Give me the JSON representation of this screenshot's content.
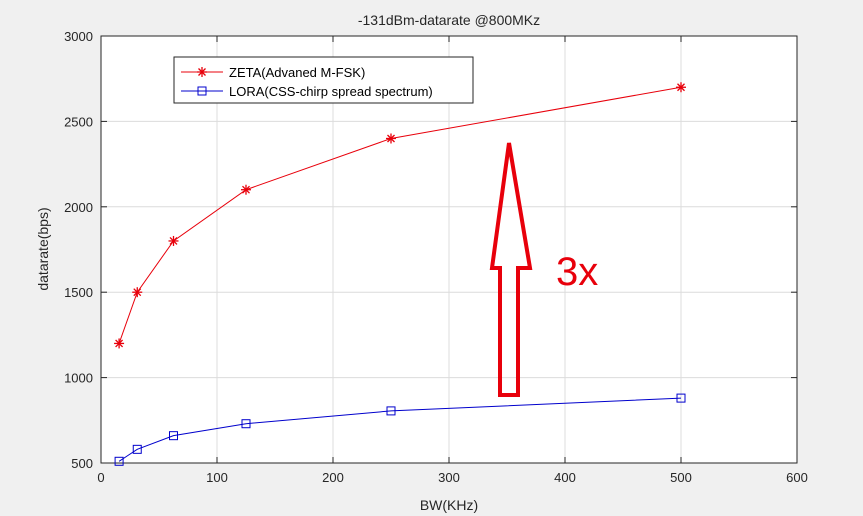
{
  "chart_data": {
    "type": "line",
    "title": "-131dBm-datarate @800MKz",
    "xlabel": "BW(KHz)",
    "ylabel": "datarate(bps)",
    "xlim": [
      0,
      600
    ],
    "ylim": [
      500,
      3000
    ],
    "xticks": [
      0,
      100,
      200,
      300,
      400,
      500,
      600
    ],
    "yticks": [
      500,
      1000,
      1500,
      2000,
      2500,
      3000
    ],
    "grid": true,
    "legend_position": "top-left",
    "series": [
      {
        "name": "ZETA(Advaned M-FSK)",
        "color": "#e8000b",
        "marker": "asterisk",
        "x": [
          15.6,
          31.25,
          62.5,
          125,
          250,
          500
        ],
        "y": [
          1200,
          1500,
          1800,
          2100,
          2400,
          2700
        ]
      },
      {
        "name": "LORA(CSS-chirp spread spectrum)",
        "color": "#0000cc",
        "marker": "square",
        "x": [
          15.6,
          31.25,
          62.5,
          125,
          250,
          500
        ],
        "y": [
          510,
          580,
          660,
          730,
          805,
          880
        ]
      }
    ],
    "annotations": [
      {
        "text": "3x",
        "color": "#e8000b",
        "type": "arrow-up"
      }
    ]
  }
}
